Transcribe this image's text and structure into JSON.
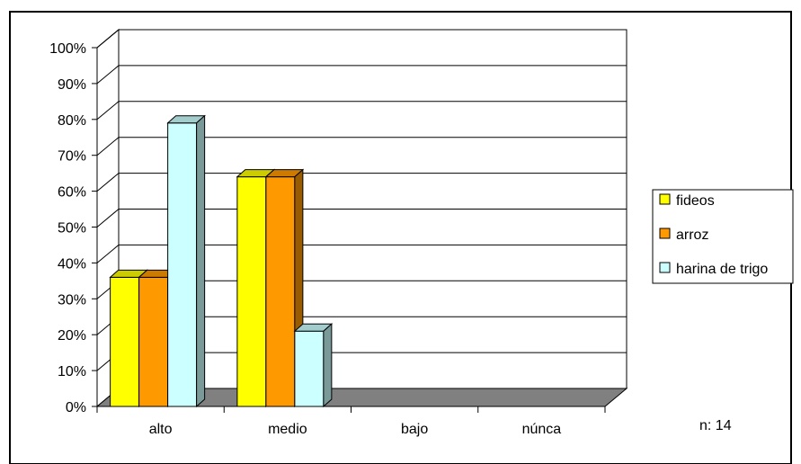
{
  "chart_data": {
    "type": "bar",
    "title": "",
    "xlabel": "",
    "ylabel": "",
    "categories": [
      "alto",
      "medio",
      "bajo",
      "núnca"
    ],
    "series": [
      {
        "name": "fideos",
        "values": [
          36,
          64,
          0,
          0
        ]
      },
      {
        "name": "arroz",
        "values": [
          36,
          64,
          0,
          0
        ]
      },
      {
        "name": "harina de trigo",
        "values": [
          79,
          21,
          0,
          0
        ]
      }
    ],
    "y_ticks": [
      "0%",
      "10%",
      "20%",
      "30%",
      "40%",
      "50%",
      "60%",
      "70%",
      "80%",
      "90%",
      "100%"
    ],
    "ylim": [
      0,
      100
    ],
    "grid": true,
    "legend_position": "right",
    "note": "n:  14"
  },
  "colors": {
    "fideos": "#ffff00",
    "arroz": "#ff9900",
    "harina de trigo": "#ccffff",
    "floor": "#808080",
    "wall": "#ffffff",
    "gridline": "#000000"
  }
}
